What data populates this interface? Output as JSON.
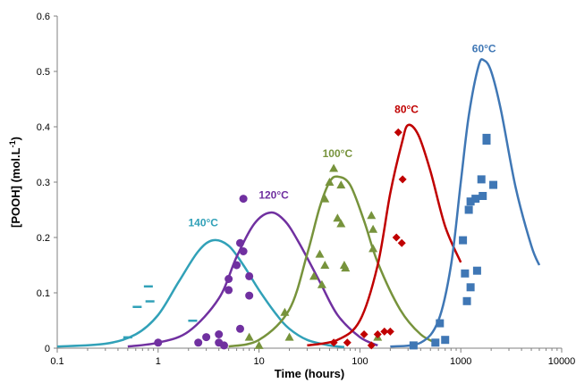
{
  "chart_data": {
    "type": "scatter",
    "title": "",
    "xlabel": "Time (hours)",
    "ylabel": "[POOH] (mol.L",
    "ylabel_superscript": "-1",
    "ylabel_suffix": ")",
    "x_scale": "log",
    "xlim": [
      0.1,
      10000
    ],
    "ylim": [
      0,
      0.6
    ],
    "x_ticks": [
      0.1,
      1,
      10,
      100,
      1000,
      10000
    ],
    "x_tick_labels": [
      "0.1",
      "1",
      "10",
      "100",
      "1000",
      "10000"
    ],
    "y_ticks": [
      0,
      0.1,
      0.2,
      0.3,
      0.4,
      0.5,
      0.6
    ],
    "y_tick_labels": [
      "0",
      "0.1",
      "0.2",
      "0.3",
      "0.4",
      "0.5",
      "0.6"
    ],
    "grid": false,
    "legend": "none",
    "series": [
      {
        "name": "140°C",
        "color": "#31a1b8",
        "marker": "dash",
        "points": [
          [
            0.5,
            0.02
          ],
          [
            0.62,
            0.075
          ],
          [
            0.8,
            0.112
          ],
          [
            0.83,
            0.085
          ],
          [
            2.2,
            0.05
          ]
        ],
        "curve": [
          [
            0.1,
            0.003
          ],
          [
            0.3,
            0.008
          ],
          [
            0.6,
            0.025
          ],
          [
            1,
            0.06
          ],
          [
            1.6,
            0.12
          ],
          [
            2.5,
            0.175
          ],
          [
            3.5,
            0.195
          ],
          [
            5,
            0.185
          ],
          [
            7,
            0.15
          ],
          [
            10,
            0.105
          ],
          [
            15,
            0.06
          ],
          [
            20,
            0.035
          ],
          [
            30,
            0.015
          ],
          [
            50,
            0.005
          ],
          [
            70,
            0.002
          ]
        ]
      },
      {
        "name": "120°C",
        "color": "#7030a0",
        "marker": "circle",
        "points": [
          [
            1,
            0.01
          ],
          [
            2.5,
            0.01
          ],
          [
            3,
            0.02
          ],
          [
            4,
            0.025
          ],
          [
            4,
            0.01
          ],
          [
            5,
            0.125
          ],
          [
            5,
            0.105
          ],
          [
            6,
            0.15
          ],
          [
            6.5,
            0.19
          ],
          [
            7,
            0.27
          ],
          [
            7,
            0.175
          ],
          [
            8,
            0.13
          ],
          [
            8,
            0.095
          ],
          [
            6.5,
            0.035
          ],
          [
            4.5,
            0.005
          ]
        ],
        "curve": [
          [
            0.5,
            0.003
          ],
          [
            1,
            0.01
          ],
          [
            2,
            0.03
          ],
          [
            4,
            0.09
          ],
          [
            6,
            0.165
          ],
          [
            9,
            0.225
          ],
          [
            13,
            0.245
          ],
          [
            18,
            0.23
          ],
          [
            25,
            0.19
          ],
          [
            40,
            0.12
          ],
          [
            60,
            0.06
          ],
          [
            100,
            0.02
          ],
          [
            150,
            0.005
          ]
        ]
      },
      {
        "name": "100°C",
        "color": "#77933c",
        "marker": "triangle",
        "points": [
          [
            8,
            0.02
          ],
          [
            10,
            0.005
          ],
          [
            18,
            0.065
          ],
          [
            20,
            0.02
          ],
          [
            35,
            0.13
          ],
          [
            40,
            0.17
          ],
          [
            42,
            0.115
          ],
          [
            45,
            0.15
          ],
          [
            50,
            0.3
          ],
          [
            45,
            0.27
          ],
          [
            55,
            0.325
          ],
          [
            60,
            0.235
          ],
          [
            65,
            0.295
          ],
          [
            65,
            0.225
          ],
          [
            70,
            0.15
          ],
          [
            72,
            0.145
          ],
          [
            130,
            0.24
          ],
          [
            135,
            0.215
          ],
          [
            135,
            0.18
          ],
          [
            150,
            0.02
          ]
        ],
        "curve": [
          [
            5,
            0.003
          ],
          [
            10,
            0.015
          ],
          [
            20,
            0.07
          ],
          [
            30,
            0.17
          ],
          [
            40,
            0.255
          ],
          [
            50,
            0.3
          ],
          [
            60,
            0.31
          ],
          [
            80,
            0.295
          ],
          [
            110,
            0.23
          ],
          [
            150,
            0.155
          ],
          [
            250,
            0.07
          ],
          [
            400,
            0.025
          ],
          [
            600,
            0.008
          ]
        ]
      },
      {
        "name": "80°C",
        "color": "#c00000",
        "marker": "diamond",
        "points": [
          [
            55,
            0.01
          ],
          [
            75,
            0.01
          ],
          [
            110,
            0.025
          ],
          [
            130,
            0.005
          ],
          [
            150,
            0.025
          ],
          [
            175,
            0.03
          ],
          [
            200,
            0.03
          ],
          [
            230,
            0.2
          ],
          [
            240,
            0.39
          ],
          [
            260,
            0.19
          ],
          [
            265,
            0.305
          ]
        ],
        "curve": [
          [
            30,
            0.005
          ],
          [
            60,
            0.015
          ],
          [
            100,
            0.05
          ],
          [
            150,
            0.15
          ],
          [
            200,
            0.28
          ],
          [
            260,
            0.37
          ],
          [
            300,
            0.403
          ],
          [
            380,
            0.385
          ],
          [
            500,
            0.32
          ],
          [
            700,
            0.22
          ],
          [
            1000,
            0.155
          ]
        ]
      },
      {
        "name": "60°C",
        "color": "#3f77b5",
        "marker": "square",
        "points": [
          [
            340,
            0.005
          ],
          [
            560,
            0.01
          ],
          [
            620,
            0.045
          ],
          [
            700,
            0.015
          ],
          [
            1050,
            0.195
          ],
          [
            1100,
            0.135
          ],
          [
            1150,
            0.085
          ],
          [
            1200,
            0.25
          ],
          [
            1250,
            0.265
          ],
          [
            1250,
            0.11
          ],
          [
            1400,
            0.27
          ],
          [
            1450,
            0.14
          ],
          [
            1600,
            0.305
          ],
          [
            1650,
            0.275
          ],
          [
            1800,
            0.38
          ],
          [
            1800,
            0.375
          ],
          [
            2100,
            0.295
          ]
        ],
        "curve": [
          [
            200,
            0.003
          ],
          [
            400,
            0.01
          ],
          [
            600,
            0.05
          ],
          [
            800,
            0.15
          ],
          [
            1000,
            0.3
          ],
          [
            1200,
            0.42
          ],
          [
            1500,
            0.51
          ],
          [
            1700,
            0.52
          ],
          [
            2000,
            0.5
          ],
          [
            2500,
            0.43
          ],
          [
            3500,
            0.29
          ],
          [
            5000,
            0.185
          ],
          [
            6000,
            0.15
          ]
        ]
      }
    ],
    "annotations": [
      {
        "text": "140°C",
        "x": 2.8,
        "y": 0.22,
        "series": 0
      },
      {
        "text": "120°C",
        "x": 14,
        "y": 0.27,
        "series": 1
      },
      {
        "text": "100°C",
        "x": 60,
        "y": 0.345,
        "series": 2
      },
      {
        "text": "80°C",
        "x": 290,
        "y": 0.425,
        "series": 3
      },
      {
        "text": "60°C",
        "x": 1700,
        "y": 0.535,
        "series": 4
      }
    ]
  }
}
